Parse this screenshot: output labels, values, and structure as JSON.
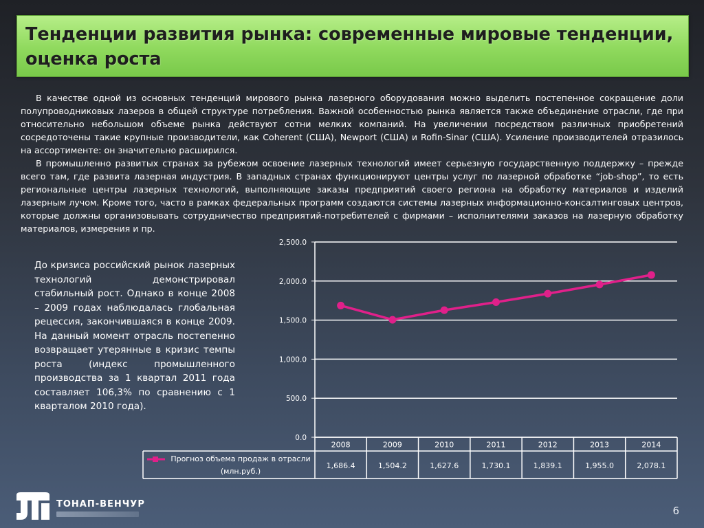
{
  "title": "Тенденции развития рынка: современные мировые тенденции, оценка роста",
  "paragraphs": [
    "В качестве одной из основных тенденций мирового рынка лазерного оборудования можно выделить постепенное сокращение доли полупроводниковых лазеров в общей структуре потребления. Важной особенностью рынка является также объединение отрасли, где при относительно небольшом объеме рынка действуют сотни мелких компаний. На увеличении посредством различных приобретений сосредоточены такие крупные производители, как Coherent (США), Newport (США) и Rofin-Sinar (США). Усиление производителей отразилось на ассортименте: он значительно расширился.",
    "В промышленно развитых странах за рубежом освоение лазерных технологий имеет серьезную государственную поддержку – прежде всего там, где развита лазерная индустрия. В западных странах функционируют центры услуг по лазерной обработке “job-shop”, то есть региональные центры лазерных технологий, выполняющие заказы предприятий своего региона на обработку материалов и изделий лазерным лучом. Кроме того, часто в рамках федеральных программ создаются системы лазерных информационно-консалтинговых центров, которые должны организовывать сотрудничество предприятий-потребителей с фирмами – исполнителями заказов на лазерную обработку материалов, измерения и пр."
  ],
  "side_text": "До кризиса российский рынок лазерных технологий демонстрировал стабильный рост. Однако в конце 2008 – 2009 годах наблюдалась глобальная рецессия, закончившаяся в конце 2009. На данный момент отрасль постепенно возвращает утерянные в кризис темпы роста (индекс промышленного производства за 1 квартал 2011 года составляет 106,3% по сравнению с 1 кварталом 2010 года).",
  "chart_data": {
    "type": "line",
    "categories": [
      "2008",
      "2009",
      "2010",
      "2011",
      "2012",
      "2013",
      "2014"
    ],
    "series": [
      {
        "name": "Прогноз объема продаж в отрасли (млн.руб.)",
        "values": [
          1686.4,
          1504.2,
          1627.6,
          1730.1,
          1839.1,
          1955.0,
          2078.1
        ],
        "labels": [
          "1,686.4",
          "1,504.2",
          "1,627.6",
          "1,730.1",
          "1,839.1",
          "1,955.0",
          "2,078.1"
        ],
        "color": "#e0208a"
      }
    ],
    "ylim": [
      0,
      2500
    ],
    "yticks": [
      {
        "value": 0,
        "label": "0.0"
      },
      {
        "value": 500,
        "label": "500.0"
      },
      {
        "value": 1000,
        "label": "1,000.0"
      },
      {
        "value": 1500,
        "label": "1,500.0"
      },
      {
        "value": 2000,
        "label": "2,000.0"
      },
      {
        "value": 2500,
        "label": "2,500.0"
      }
    ],
    "grid": true,
    "legend": "data-table-bottom",
    "data_table": true
  },
  "logo": {
    "name": "ТОНАП-ВЕНЧУР",
    "icon": "company-logo-icon"
  },
  "page_number": "6"
}
